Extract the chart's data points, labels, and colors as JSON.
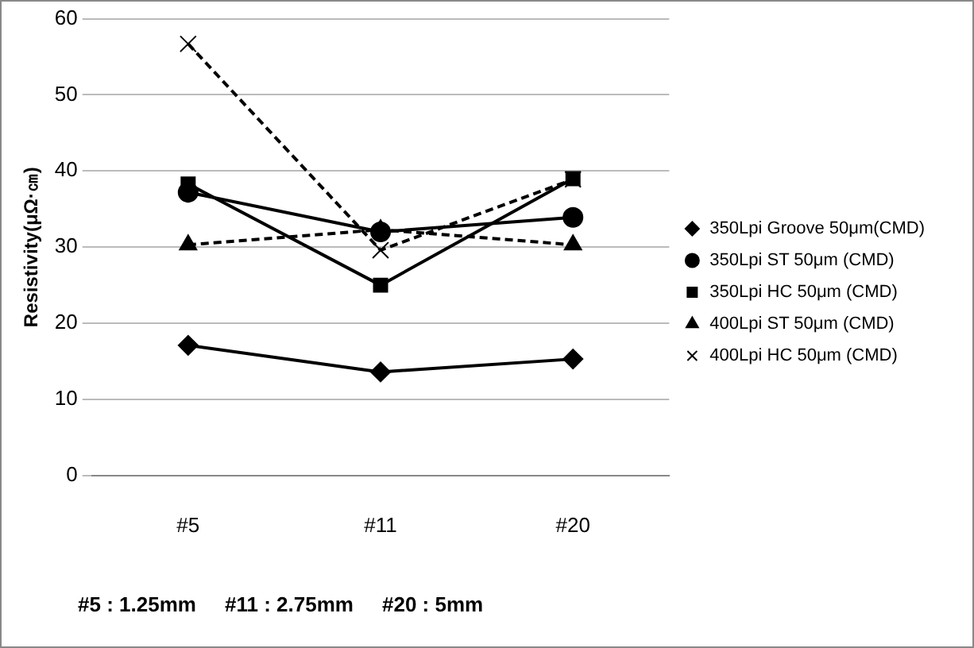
{
  "chart_data": {
    "type": "line",
    "ylabel": "Resistivity(μΩ·㎝)",
    "categories": [
      "#5",
      "#11",
      "#20"
    ],
    "series": [
      {
        "name": "350Lpi Groove 50μm(CMD)",
        "color": "#000000",
        "values": [
          17.1,
          13.6,
          15.3
        ],
        "marker": "diamond",
        "line_style": "solid"
      },
      {
        "name": "350Lpi ST 50μm (CMD)",
        "color": "#000000",
        "values": [
          37.2,
          32.0,
          33.9
        ],
        "marker": "circle",
        "line_style": "solid"
      },
      {
        "name": "350Lpi HC 50μm (CMD)",
        "color": "#000000",
        "values": [
          38.3,
          25.0,
          39.0
        ],
        "marker": "square",
        "line_style": "solid"
      },
      {
        "name": "400Lpi ST 50μm (CMD)",
        "color": "#000000",
        "values": [
          30.3,
          32.3,
          30.3
        ],
        "marker": "triangle",
        "line_style": "dashed"
      },
      {
        "name": "400Lpi HC 50μm (CMD)",
        "color": "#000000",
        "values": [
          56.7,
          29.6,
          38.9
        ],
        "marker": "cross",
        "line_style": "dashed"
      }
    ],
    "ylim": [
      0,
      60
    ],
    "yticks": [
      0,
      10,
      20,
      30,
      40,
      50,
      60
    ],
    "grid": "y",
    "legend": "right",
    "annotations": [
      "#5 : 1.25mm     #11 : 2.75mm     #20 : 5mm"
    ]
  }
}
